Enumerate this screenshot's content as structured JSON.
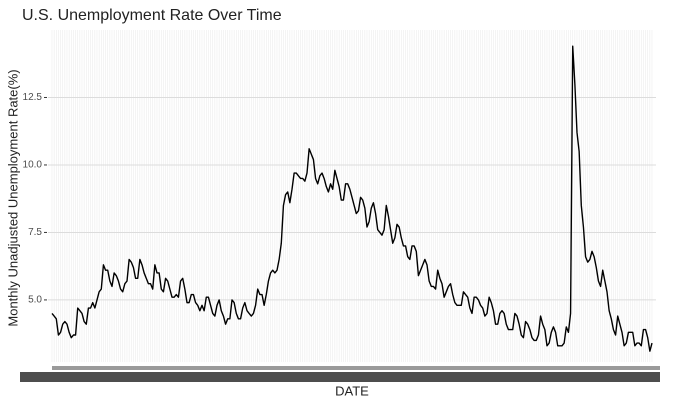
{
  "chart_data": {
    "type": "line",
    "title": "U.S. Unemployment Rate Over Time",
    "x_label": "DATE",
    "y_label": "Monthly Unadjusted Unemployment Rate(%)",
    "color": "#000000",
    "grid": true,
    "ylim": [
      2.7,
      15.0
    ],
    "yticks": [
      {
        "value": 5,
        "label": "5.0"
      },
      7.5,
      {
        "value": 10,
        "label": "10.0"
      },
      12.5
    ],
    "categories": [
      null,
      null,
      null,
      null,
      null,
      null,
      null,
      null,
      null,
      null,
      null,
      null,
      null,
      null,
      null,
      null,
      null,
      null,
      null,
      null,
      null,
      null,
      null,
      null,
      null,
      null,
      null,
      null,
      null,
      null,
      null,
      null,
      null,
      null,
      null,
      null,
      null,
      null,
      null,
      null,
      null,
      null,
      null,
      null,
      null,
      null,
      null,
      null,
      null,
      null,
      null,
      null,
      null,
      null,
      null,
      null,
      null,
      null,
      null,
      null,
      null,
      null,
      null,
      null,
      null,
      null,
      null,
      null,
      null,
      null,
      null,
      null,
      null,
      null,
      null,
      null,
      null,
      null,
      null,
      null,
      null,
      null,
      null,
      null,
      null,
      null,
      null,
      null,
      null,
      null,
      null,
      null,
      null,
      null,
      null,
      null,
      null,
      null,
      null,
      null,
      null,
      null,
      null,
      null,
      null,
      null,
      null,
      null,
      null,
      null,
      null,
      null,
      null,
      null,
      null,
      null,
      null,
      null,
      null,
      null,
      null,
      null,
      null,
      null,
      null,
      null,
      null,
      null,
      null,
      null,
      null,
      null,
      null,
      null,
      null,
      null,
      null,
      null,
      null,
      null,
      null,
      null,
      null,
      null,
      null,
      null,
      null,
      null,
      null,
      null,
      null,
      null,
      null,
      null,
      null,
      null,
      null,
      null,
      null,
      null,
      null,
      null,
      null,
      null,
      null,
      null,
      null,
      null,
      null,
      null,
      null,
      null,
      null,
      null,
      null,
      null,
      null,
      null,
      null,
      null,
      null,
      null,
      null,
      null,
      null,
      null,
      null,
      null,
      null,
      null,
      null,
      null,
      null,
      null,
      null,
      null,
      null,
      null,
      null,
      null,
      null,
      null,
      null,
      null,
      null,
      null,
      null,
      null,
      null,
      null,
      null,
      null,
      null,
      null,
      null,
      null,
      null,
      null,
      null,
      null,
      null,
      null,
      null,
      null,
      null,
      null,
      null,
      null,
      null,
      null,
      null,
      null,
      null,
      null,
      null,
      null,
      null,
      null,
      null,
      null,
      null,
      null,
      null,
      null,
      null,
      null,
      null,
      null,
      null,
      null,
      null,
      null,
      null,
      null,
      null,
      null,
      null,
      null,
      null,
      null,
      null,
      null,
      null,
      null,
      null,
      null,
      null,
      null,
      null,
      null,
      null,
      null,
      null,
      null,
      null,
      null,
      null,
      null,
      null,
      null,
      null
    ],
    "values": [
      4.5,
      4.4,
      4.3,
      3.7,
      3.8,
      4.1,
      4.2,
      4.1,
      3.8,
      3.6,
      3.7,
      3.7,
      4.7,
      4.6,
      4.5,
      4.2,
      4.1,
      4.7,
      4.7,
      4.9,
      4.7,
      5.0,
      5.3,
      5.4,
      6.3,
      6.1,
      6.1,
      5.7,
      5.5,
      6.0,
      5.9,
      5.7,
      5.4,
      5.3,
      5.6,
      5.7,
      6.5,
      6.4,
      6.2,
      5.8,
      5.8,
      6.5,
      6.3,
      6.0,
      5.8,
      5.6,
      5.6,
      5.4,
      6.3,
      6.0,
      6.0,
      5.4,
      5.3,
      5.8,
      5.7,
      5.4,
      5.1,
      5.1,
      5.2,
      5.1,
      5.7,
      5.8,
      5.4,
      4.9,
      4.9,
      5.2,
      5.2,
      4.9,
      4.8,
      4.6,
      4.8,
      4.6,
      5.1,
      5.1,
      4.8,
      4.5,
      4.4,
      4.8,
      5.0,
      4.6,
      4.4,
      4.1,
      4.3,
      4.3,
      5.0,
      4.9,
      4.5,
      4.3,
      4.3,
      4.7,
      4.9,
      4.6,
      4.5,
      4.4,
      4.5,
      4.8,
      5.4,
      5.2,
      5.2,
      4.8,
      5.2,
      5.7,
      6.0,
      6.1,
      6.0,
      6.1,
      6.5,
      7.1,
      8.5,
      8.9,
      9.0,
      8.6,
      9.1,
      9.7,
      9.7,
      9.6,
      9.5,
      9.5,
      9.4,
      9.7,
      10.6,
      10.4,
      10.2,
      9.5,
      9.3,
      9.6,
      9.7,
      9.5,
      9.2,
      9.0,
      9.3,
      9.1,
      9.8,
      9.5,
      9.2,
      8.7,
      8.7,
      9.3,
      9.3,
      9.1,
      8.8,
      8.5,
      8.2,
      8.3,
      8.8,
      8.7,
      8.4,
      7.7,
      7.9,
      8.4,
      8.6,
      8.2,
      7.6,
      7.5,
      7.4,
      7.6,
      8.5,
      8.1,
      7.6,
      7.1,
      7.3,
      7.8,
      7.7,
      7.3,
      7.0,
      7.0,
      6.6,
      6.5,
      7.0,
      7.0,
      6.8,
      5.9,
      6.1,
      6.3,
      6.5,
      6.3,
      5.7,
      5.5,
      5.5,
      5.4,
      6.1,
      5.8,
      5.6,
      5.1,
      5.3,
      5.5,
      5.6,
      5.2,
      4.9,
      4.8,
      4.8,
      4.8,
      5.3,
      5.2,
      5.1,
      4.7,
      4.5,
      5.1,
      5.1,
      5.0,
      4.8,
      4.7,
      4.4,
      4.5,
      5.1,
      4.9,
      4.6,
      4.1,
      4.1,
      4.5,
      4.6,
      4.5,
      4.1,
      3.9,
      3.9,
      3.9,
      4.5,
      4.4,
      4.1,
      3.7,
      3.6,
      4.2,
      4.1,
      3.9,
      3.6,
      3.5,
      3.5,
      3.7,
      4.4,
      4.1,
      3.9,
      3.3,
      3.4,
      3.8,
      4.0,
      3.8,
      3.3,
      3.3,
      3.3,
      3.4,
      4.0,
      3.8,
      4.5,
      14.4,
      13.0,
      11.2,
      10.5,
      8.5,
      7.7,
      6.6,
      6.4,
      6.5,
      6.8,
      6.6,
      6.2,
      5.7,
      5.5,
      6.1,
      5.7,
      5.3,
      4.6,
      4.3,
      3.9,
      3.7,
      4.4,
      4.1,
      3.8,
      3.3,
      3.4,
      3.8,
      3.8,
      3.8,
      3.3,
      3.4,
      3.4,
      3.3,
      3.9,
      3.9,
      3.6,
      3.1,
      3.4
    ]
  }
}
